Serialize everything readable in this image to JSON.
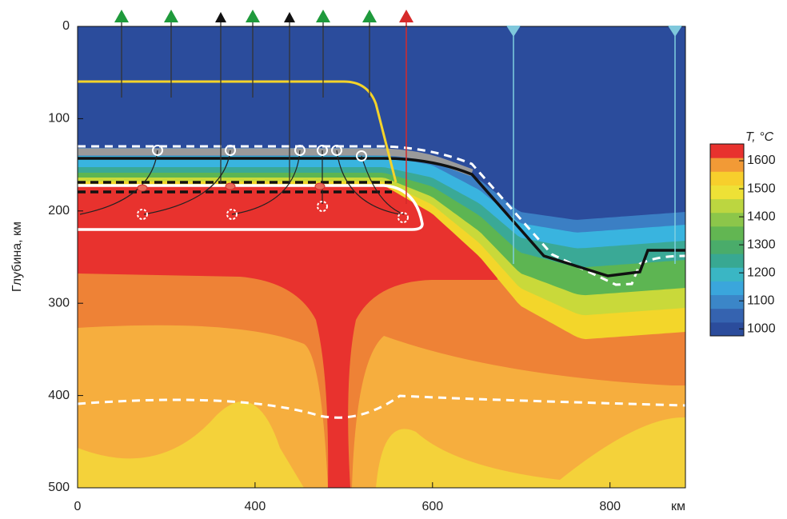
{
  "chart_data": {
    "type": "contour",
    "y_label": "Глубина, км",
    "x_unit": "км",
    "xlim": [
      200,
      885
    ],
    "ylim": [
      0,
      500
    ],
    "xticks": [
      {
        "value": 200,
        "label": "0"
      },
      400,
      600,
      800
    ],
    "yticks": [
      0,
      100,
      200,
      300,
      400,
      500
    ],
    "colorbar": {
      "title": "T, °C",
      "lim": [
        975,
        1660
      ],
      "ticks": [
        1000,
        1100,
        1200,
        1300,
        1400,
        1500,
        1600
      ],
      "colors": [
        "#2b4c9c",
        "#3563b0",
        "#3b86c8",
        "#3aa6dc",
        "#3ab6c4",
        "#38a892",
        "#4aac6a",
        "#62b652",
        "#8cc64a",
        "#bcd640",
        "#eee136",
        "#f7cf2c",
        "#f29a36",
        "#e8322e"
      ]
    }
  }
}
